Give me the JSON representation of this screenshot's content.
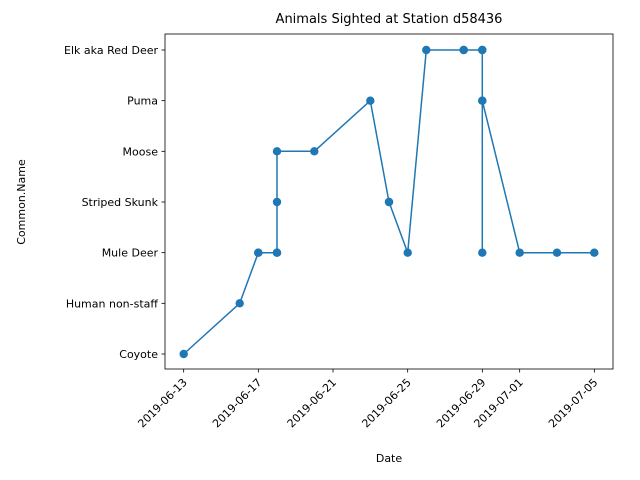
{
  "chart_data": {
    "type": "line",
    "title": "Animals Sighted at Station d58436",
    "xlabel": "Date",
    "ylabel": "Common.Name",
    "categories": [
      "Coyote",
      "Human non-staff",
      "Mule Deer",
      "Striped Skunk",
      "Moose",
      "Puma",
      "Elk aka Red Deer"
    ],
    "x_ticks": [
      "2019-06-13",
      "2019-06-17",
      "2019-06-21",
      "2019-06-25",
      "2019-06-29",
      "2019-07-01",
      "2019-07-05"
    ],
    "x_range": [
      "2019-06-12",
      "2019-07-06"
    ],
    "grid": false,
    "legend": "none",
    "color": "#1f77b4",
    "series": [
      {
        "points": [
          {
            "x": "2019-06-13",
            "y": "Coyote"
          },
          {
            "x": "2019-06-16",
            "y": "Human non-staff"
          },
          {
            "x": "2019-06-17",
            "y": "Mule Deer"
          },
          {
            "x": "2019-06-17",
            "y": "Mule Deer"
          },
          {
            "x": "2019-06-18",
            "y": "Mule Deer"
          },
          {
            "x": "2019-06-18",
            "y": "Mule Deer"
          },
          {
            "x": "2019-06-18",
            "y": "Striped Skunk"
          },
          {
            "x": "2019-06-18",
            "y": "Moose"
          },
          {
            "x": "2019-06-20",
            "y": "Moose"
          },
          {
            "x": "2019-06-23",
            "y": "Puma"
          },
          {
            "x": "2019-06-24",
            "y": "Striped Skunk"
          },
          {
            "x": "2019-06-24",
            "y": "Striped Skunk"
          },
          {
            "x": "2019-06-25",
            "y": "Mule Deer"
          },
          {
            "x": "2019-06-26",
            "y": "Elk aka Red Deer"
          },
          {
            "x": "2019-06-28",
            "y": "Elk aka Red Deer"
          },
          {
            "x": "2019-06-28",
            "y": "Elk aka Red Deer"
          },
          {
            "x": "2019-06-29",
            "y": "Elk aka Red Deer"
          },
          {
            "x": "2019-06-29",
            "y": "Elk aka Red Deer"
          },
          {
            "x": "2019-06-29",
            "y": "Puma"
          },
          {
            "x": "2019-06-29",
            "y": "Mule Deer"
          },
          {
            "x": "2019-06-29",
            "y": "Puma"
          },
          {
            "x": "2019-07-01",
            "y": "Mule Deer"
          },
          {
            "x": "2019-07-03",
            "y": "Mule Deer"
          },
          {
            "x": "2019-07-05",
            "y": "Mule Deer"
          }
        ]
      }
    ]
  }
}
